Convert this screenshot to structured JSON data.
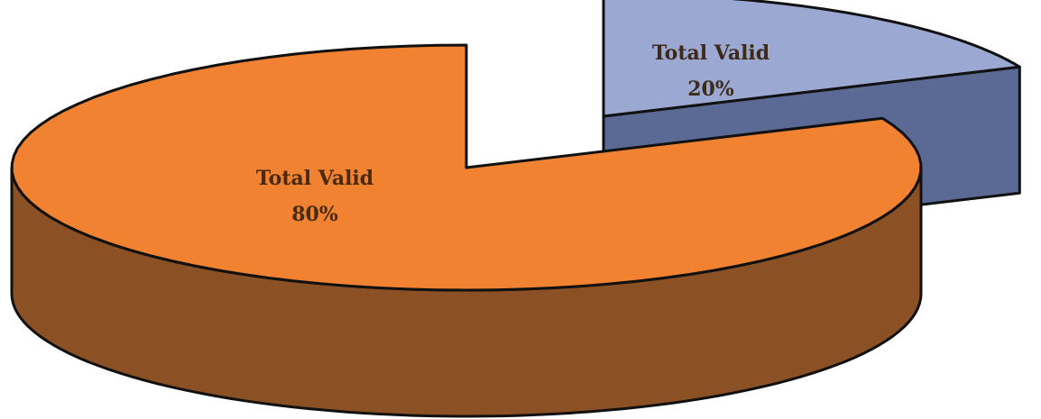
{
  "chart_data": {
    "type": "pie",
    "style": "3d-exploded",
    "slices": [
      {
        "label": "Total Valid",
        "value": 80,
        "percent_label": "80%",
        "top_color": "#f08232",
        "side_color": "#8b5124",
        "exploded": false
      },
      {
        "label": "Total Valid",
        "value": 20,
        "percent_label": "20%",
        "top_color": "#9ba8d2",
        "side_color": "#5a6a95",
        "exploded": true
      }
    ],
    "title": "",
    "legend": "none",
    "outline_color": "#111111"
  }
}
